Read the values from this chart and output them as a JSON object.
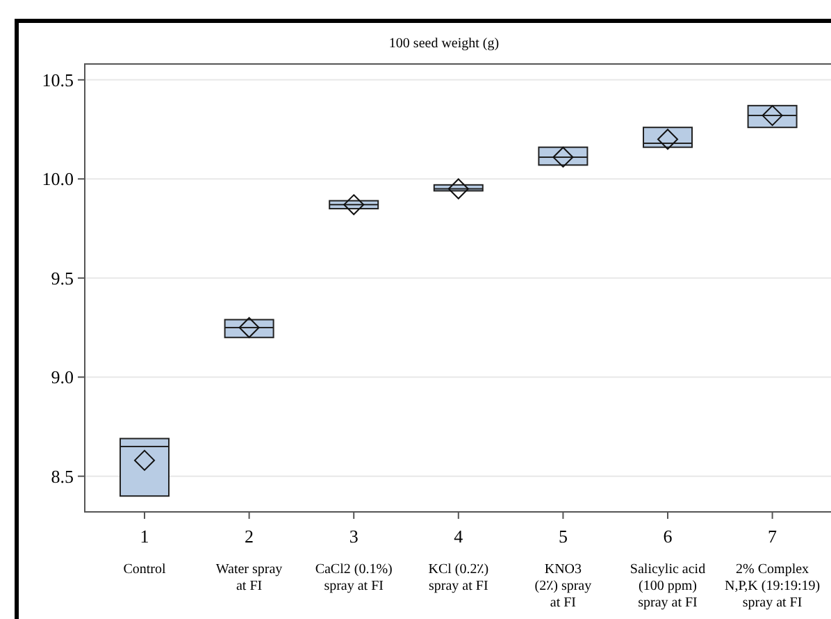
{
  "chart_data": {
    "type": "box",
    "title": "100 seed weight (g)",
    "categories": [
      "1\nControl",
      "2\nWater spray\nat FI",
      "3\nCaCl2 (0.1%)\nspray at FI",
      "4\nKCl (0.2٪)\nspray at FI",
      "5\nKNO3\n(2٪) spray\nat FI",
      "6\nSalicylic acid\n(100 ppm)\nspray at FI",
      "7\n2% Complex\nN,P,K (19:19:19)\nspray at FI"
    ],
    "boxes": [
      {
        "low": 8.4,
        "q1": 8.4,
        "median": 8.65,
        "q3": 8.69,
        "high": 8.69,
        "mean": 8.58
      },
      {
        "low": 9.2,
        "q1": 9.2,
        "median": 9.25,
        "q3": 9.29,
        "high": 9.29,
        "mean": 9.25
      },
      {
        "low": 9.85,
        "q1": 9.85,
        "median": 9.87,
        "q3": 9.89,
        "high": 9.89,
        "mean": 9.87
      },
      {
        "low": 9.94,
        "q1": 9.94,
        "median": 9.95,
        "q3": 9.97,
        "high": 9.97,
        "mean": 9.95
      },
      {
        "low": 10.07,
        "q1": 10.07,
        "median": 10.11,
        "q3": 10.16,
        "high": 10.16,
        "mean": 10.11
      },
      {
        "low": 10.16,
        "q1": 10.16,
        "median": 10.18,
        "q3": 10.26,
        "high": 10.26,
        "mean": 10.2
      },
      {
        "low": 10.26,
        "q1": 10.26,
        "median": 10.32,
        "q3": 10.37,
        "high": 10.37,
        "mean": 10.32
      }
    ],
    "color": "#b8cce4",
    "marker": "diamond",
    "ylim": [
      8.32,
      10.58
    ],
    "yticks": [
      {
        "value": 8.5,
        "label": "8.5"
      },
      {
        "value": 9,
        "label": "9.0"
      },
      {
        "value": 9.5,
        "label": "9.5"
      },
      {
        "value": 10,
        "label": "10.0"
      },
      {
        "value": 10.5,
        "label": "10.5"
      }
    ],
    "grid": "y"
  }
}
